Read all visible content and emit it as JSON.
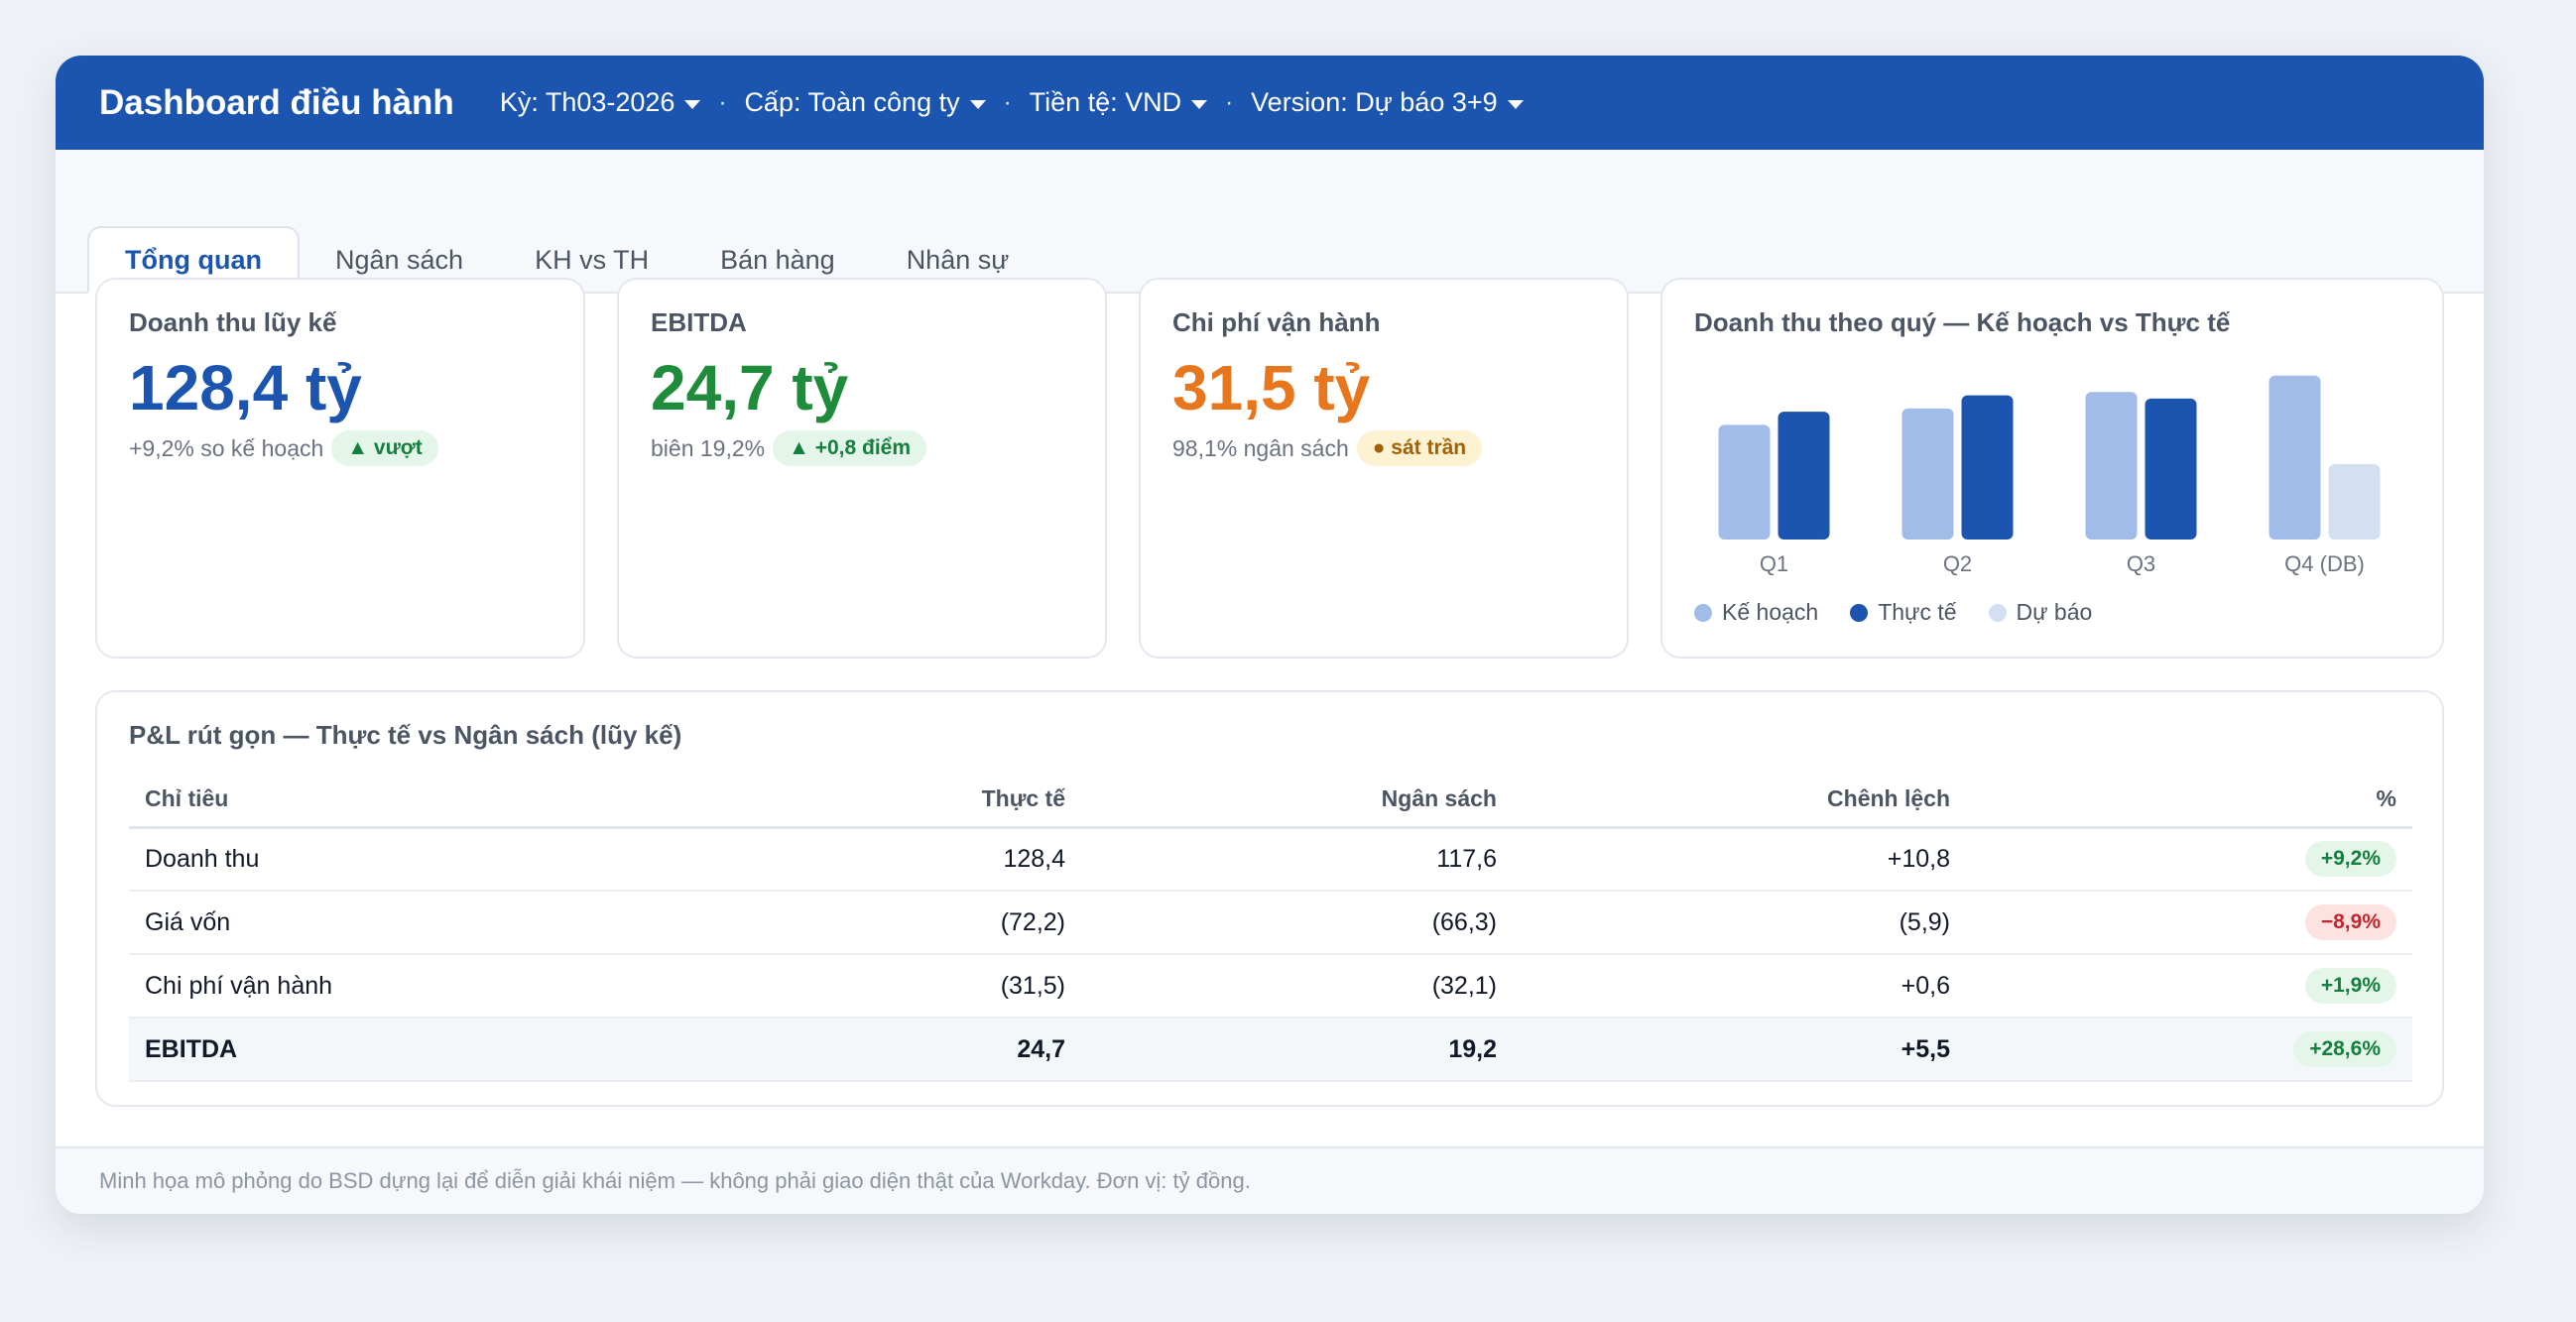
{
  "header": {
    "title": "Dashboard điều hành",
    "filters": [
      {
        "label": "Kỳ: Th03-2026"
      },
      {
        "label": "Cấp: Toàn công ty"
      },
      {
        "label": "Tiền tệ: VND"
      },
      {
        "label": "Version: Dự báo 3+9"
      }
    ],
    "separator": "·"
  },
  "tabs": [
    {
      "label": "Tổng quan",
      "active": true
    },
    {
      "label": "Ngân sách"
    },
    {
      "label": "KH vs TH"
    },
    {
      "label": "Bán hàng"
    },
    {
      "label": "Nhân sự"
    }
  ],
  "kpis": [
    {
      "label": "Doanh thu lũy kế",
      "value": "128,4 tỷ",
      "sub": "+9,2% so kế hoạch",
      "badge": "▲ vượt",
      "color": "#1b55b0"
    },
    {
      "label": "EBITDA",
      "value": "24,7 tỷ",
      "sub": "biên 19,2%",
      "badge": "▲ +0,8 điểm",
      "color": "#1e8c3a"
    },
    {
      "label": "Chi phí vận hành",
      "value": "31,5 tỷ",
      "sub": "98,1% ngân sách",
      "badge": "● sát trần",
      "color": "#e8761c"
    }
  ],
  "chart_data": {
    "type": "bar",
    "title": "Doanh thu theo quý — Kế hoạch vs Thực tế",
    "categories": [
      "Q1",
      "Q2",
      "Q3",
      "Q4 (DB)"
    ],
    "series": [
      {
        "name": "Kế hoạch",
        "values": [
          70,
          80,
          90,
          100
        ],
        "color": "#a1bce9"
      },
      {
        "name": "Thực tế",
        "values": [
          78,
          88,
          86,
          null
        ],
        "color": "#1b55b0"
      },
      {
        "name": "Dự báo",
        "values": [
          null,
          null,
          null,
          46
        ],
        "color": "#d4e0f2"
      }
    ],
    "ylim": [
      0,
      115
    ],
    "grid": false,
    "legend": "bottom-left"
  },
  "pl": {
    "title": "P&L rút gọn — Thực tế vs Ngân sách (lũy kế)",
    "columns": [
      "Chỉ tiêu",
      "Thực tế",
      "Ngân sách",
      "Chênh lệch",
      "%"
    ],
    "rows": [
      {
        "item": "Doanh thu",
        "actual": "128,4",
        "budget": "117,6",
        "diff": "+10,8",
        "pct": "+9,2%",
        "status": "good"
      },
      {
        "item": "Giá vốn",
        "actual": "(72,2)",
        "budget": "(66,3)",
        "diff": "(5,9)",
        "pct": "−8,9%",
        "status": "bad"
      },
      {
        "item": "Chi phí vận hành",
        "actual": "(31,5)",
        "budget": "(32,1)",
        "diff": "+0,6",
        "pct": "+1,9%",
        "status": "good"
      },
      {
        "item": "EBITDA",
        "actual": "24,7",
        "budget": "19,2",
        "diff": "+5,5",
        "pct": "+28,6%",
        "status": "good",
        "total": true
      }
    ]
  },
  "footer": "Minh họa mô phỏng do BSD dựng lại để diễn giải khái niệm — không phải giao diện thật của Workday. Đơn vị: tỷ đồng."
}
